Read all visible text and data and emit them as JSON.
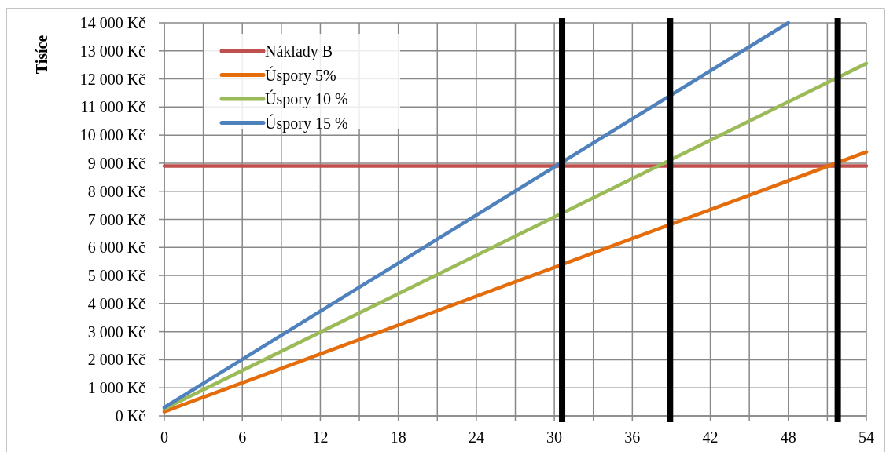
{
  "chart_data": {
    "type": "line",
    "ylabel": "Tisíce",
    "xlim": [
      0,
      54
    ],
    "ylim": [
      0,
      14000
    ],
    "xticks": [
      0,
      {
        "value": 3,
        "label": null
      },
      6,
      {
        "value": 9,
        "label": null
      },
      12,
      {
        "value": 15,
        "label": null
      },
      18,
      {
        "value": 21,
        "label": null
      },
      24,
      {
        "value": 27,
        "label": null
      },
      30,
      {
        "value": 33,
        "label": null
      },
      36,
      {
        "value": 39,
        "label": null
      },
      42,
      {
        "value": 45,
        "label": null
      },
      48,
      {
        "value": 51,
        "label": null
      },
      54
    ],
    "yticks": [
      {
        "value": 0,
        "label": "0 Kč"
      },
      {
        "value": 1000,
        "label": "1 000 Kč"
      },
      {
        "value": 2000,
        "label": "2 000 Kč"
      },
      {
        "value": 3000,
        "label": "3 000 Kč"
      },
      {
        "value": 4000,
        "label": "4 000 Kč"
      },
      {
        "value": 5000,
        "label": "5 000 Kč"
      },
      {
        "value": 6000,
        "label": "6 000 Kč"
      },
      {
        "value": 7000,
        "label": "7 000 Kč"
      },
      {
        "value": 8000,
        "label": "8 000 Kč"
      },
      {
        "value": 9000,
        "label": "9 000 Kč"
      },
      {
        "value": 10000,
        "label": "10 000 Kč"
      },
      {
        "value": 11000,
        "label": "11 000 Kč"
      },
      {
        "value": 12000,
        "label": "12 000 Kč"
      },
      {
        "value": 13000,
        "label": "13 000 Kč"
      },
      {
        "value": 14000,
        "label": "14 000 Kč"
      }
    ],
    "grid": true,
    "legend": "top left",
    "marker": "none",
    "line_style": "solid",
    "series": [
      {
        "name": "Náklady B",
        "color": "#c0504d",
        "x": [
          0,
          54
        ],
        "values": [
          8900,
          8900
        ]
      },
      {
        "name": "Úspory 5%",
        "color": "#e46c0a",
        "x": [
          0,
          54
        ],
        "values": [
          150,
          9400
        ]
      },
      {
        "name": "Úspory 10 %",
        "color": "#9bbb59",
        "x": [
          0,
          54
        ],
        "values": [
          250,
          12550
        ]
      },
      {
        "name": "Úspory 15 %",
        "color": "#4f81bd",
        "x": [
          0,
          48
        ],
        "values": [
          300,
          14000
        ]
      }
    ],
    "ref_lines": [
      {
        "axis": "x",
        "value": 30.6,
        "color": "#000000"
      },
      {
        "axis": "x",
        "value": 38.9,
        "color": "#000000"
      },
      {
        "axis": "x",
        "value": 51.8,
        "color": "#000000"
      }
    ]
  }
}
